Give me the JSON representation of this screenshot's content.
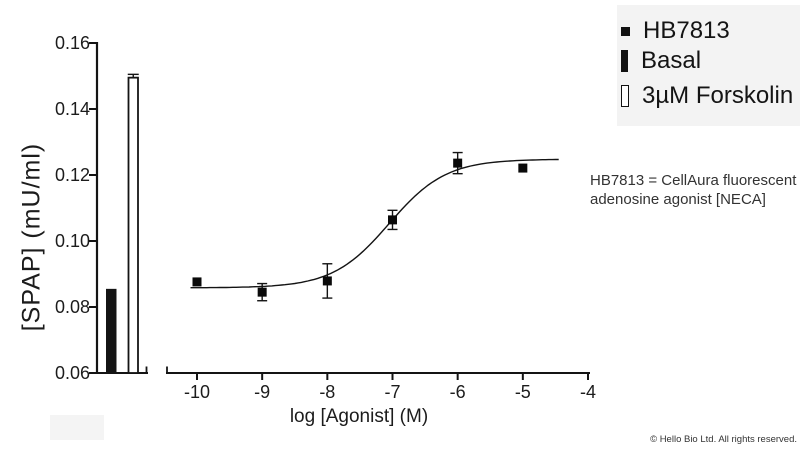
{
  "figure": {
    "bg": "#ffffff",
    "text_color": "#1c1c1c"
  },
  "legend": {
    "bg": "#f3f3f3",
    "entries": [
      {
        "label": "HB7813",
        "marker": "square"
      },
      {
        "label": "Basal",
        "marker": "bar-filled"
      },
      {
        "label": "3µM Forskolin",
        "marker": "bar-open"
      }
    ]
  },
  "annotation": {
    "line1": "HB7813 = CellAura fluorescent",
    "line2": "adenosine agonist [NECA]"
  },
  "footer": {
    "copyright": "© Hello Bio Ltd. All rights reserved."
  },
  "chart_data": {
    "type": "line",
    "title": "",
    "xlabel": "log [Agonist] (M)",
    "ylabel": "[SPAP] (mU/ml)",
    "ylim": [
      0.06,
      0.16
    ],
    "xlim": [
      -10.5,
      -4
    ],
    "grid": false,
    "legend_position": "top-right",
    "y_ticks": [
      "0.16",
      "0.14",
      "0.12",
      "0.10",
      "0.08",
      "0.06"
    ],
    "x_ticks": [
      "-10",
      "-9",
      "-8",
      "-7",
      "-6",
      "-5",
      "-4"
    ],
    "bars": [
      {
        "label": "Basal",
        "value": 0.0855,
        "error": 0,
        "style": "filled"
      },
      {
        "label": "3µM Forskolin",
        "value": 0.1495,
        "error": 0.001,
        "style": "open"
      }
    ],
    "series": [
      {
        "name": "HB7813",
        "marker": "filled-square",
        "x": [
          -10,
          -9,
          -8,
          -7,
          -6,
          -5
        ],
        "y": [
          0.0876,
          0.0845,
          0.0879,
          0.1064,
          0.1236,
          0.1221
        ],
        "y_err": [
          0.001,
          0.0026,
          0.0052,
          0.0029,
          0.0032,
          0
        ]
      }
    ],
    "fit_curve": {
      "model": "sigmoid",
      "bottom": 0.0858,
      "top": 0.1248,
      "log_ec50": -7.05,
      "hill": 1.0,
      "x_start": -10.1,
      "x_end": -4.45
    }
  }
}
